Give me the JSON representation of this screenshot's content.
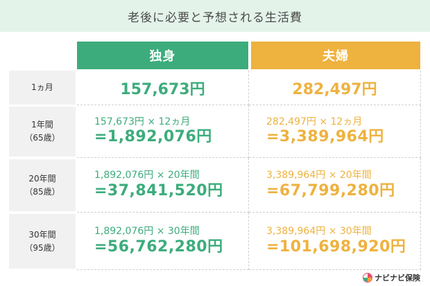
{
  "title": "老後に必要と予想される生活費",
  "headers": {
    "single": "独身",
    "couple": "夫婦"
  },
  "rows": [
    {
      "label_line1": "1ヵ月",
      "label_line2": "",
      "single_calc": "",
      "single_result": "157,673円",
      "couple_calc": "",
      "couple_result": "282,497円"
    },
    {
      "label_line1": "1年間",
      "label_line2": "（65歳）",
      "single_calc": "157,673円 × 12ヵ月",
      "single_result": "=1,892,076円",
      "couple_calc": "282,497円 × 12ヵ月",
      "couple_result": "=3,389,964円"
    },
    {
      "label_line1": "20年間",
      "label_line2": "（85歳）",
      "single_calc": "1,892,076円 × 20年間",
      "single_result": "=37,841,520円",
      "couple_calc": "3,389,964円 × 20年間",
      "couple_result": "=67,799,280円"
    },
    {
      "label_line1": "30年間",
      "label_line2": "（95歳）",
      "single_calc": "1,892,076円 × 30年間",
      "single_result": "=56,762,280円",
      "couple_calc": "3,389,964円 × 30年間",
      "couple_result": "=101,698,920円"
    }
  ],
  "logo": {
    "text": "ナビナビ保険",
    "icon": "navinavi-logo-icon"
  },
  "colors": {
    "single": "#3dac7c",
    "couple": "#eeb23f",
    "title_bg": "#e3f3ea",
    "label_bg": "#f1f1f1"
  }
}
